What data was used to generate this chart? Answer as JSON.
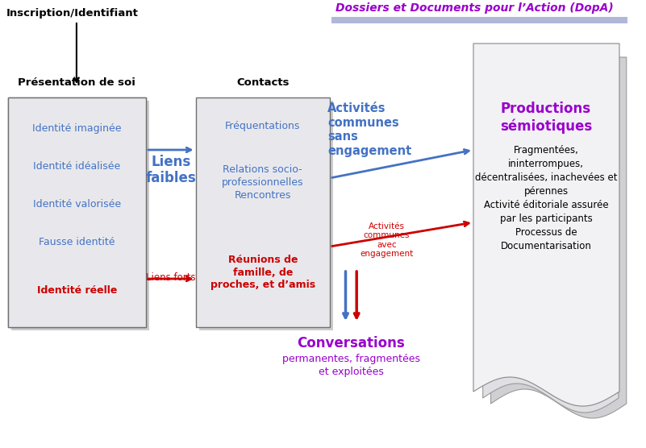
{
  "title_doPA": "Dossiers et Documents pour l’Action (DopA)",
  "inscription_label": "Inscription/Identifiant",
  "presentation_label": "Présentation de soi",
  "contacts_label": "Contacts",
  "liens_faibles_label": "Liens\nfaibles",
  "liens_forts_label": "Liens forts",
  "activites_sans_label": "Activités\ncommunes\nsans\nengagement",
  "activites_avec_label": "Activités\ncommunes\navec\nengagement",
  "conversations_label": "Conversations",
  "conversations_sub": "permanentes, fragmentées\net exploitées",
  "productions_label": "Productions\nsémiotiques",
  "productions_sub": "Fragmentées,\nininterrompues,\ndécentralisées, inachevées et\npérennes\nActivité éditoriale assurée\npar les participants\nProcessus de\nDocumentarisation",
  "box1_items_blue": [
    "Identité imaginée",
    "Identité idéalisée",
    "Identité valorisée",
    "Fausse identité"
  ],
  "box1_item_red": "Identité réelle",
  "box2_item1": "Fréquentations",
  "box2_item2": "Relations socio-\nprofessionnelles\nRencontres",
  "box2_item3": "Réunions de\nfamille, de\nproches, et d’amis",
  "color_blue": "#4472C4",
  "color_red": "#CC0000",
  "color_purple": "#9900CC",
  "color_black": "#000000",
  "color_box_fill": "#E8E8EC",
  "color_doPA_bar": "#B0B8D8",
  "color_page1": "#F2F2F4",
  "color_page2": "#E0E0E4",
  "color_page3": "#D0D0D4"
}
